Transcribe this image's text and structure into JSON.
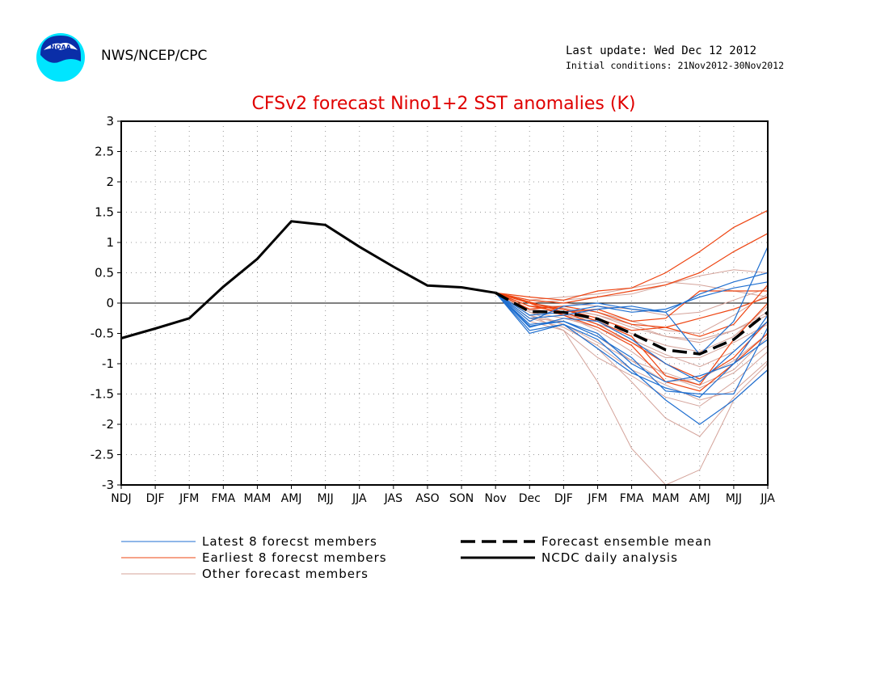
{
  "header": {
    "agency": "NWS/NCEP/CPC",
    "last_update": "Last update: Wed Dec 12 2012",
    "initial_conditions": "Initial conditions: 21Nov2012-30Nov2012",
    "logo_text": "NOAA"
  },
  "colors": {
    "title": "#e00000",
    "latest": "#1f6fd0",
    "earliest": "#ee4411",
    "other": "#d4a39a",
    "analysis": "#000000"
  },
  "chart_data": {
    "type": "line",
    "title": "CFSv2 forecast Nino1+2 SST anomalies (K)",
    "categories": [
      "NDJ",
      "DJF",
      "JFM",
      "FMA",
      "MAM",
      "AMJ",
      "MJJ",
      "JJA",
      "JAS",
      "ASO",
      "SON",
      "Nov",
      "Dec",
      "DJF",
      "JFM",
      "FMA",
      "MAM",
      "AMJ",
      "MJJ",
      "JJA"
    ],
    "ylim": [
      -3,
      3
    ],
    "yticks": [
      "3",
      "2.5",
      "2",
      "1.5",
      "1",
      "0.5",
      "0",
      "-0.5",
      "-1",
      "-1.5",
      "-2",
      "-2.5",
      "-3"
    ],
    "grid": true,
    "legend": [
      {
        "label": "Latest 8 forecst members",
        "style": "latest"
      },
      {
        "label": "Earliest 8 forecst members",
        "style": "earliest"
      },
      {
        "label": "Other forecast members",
        "style": "other"
      },
      {
        "label": "Forecast ensemble mean",
        "style": "mean"
      },
      {
        "label": "NCDC daily analysis",
        "style": "analysis"
      }
    ],
    "analysis": {
      "name": "NCDC daily analysis",
      "start_index": 0,
      "values": [
        -0.58,
        -0.42,
        -0.25,
        0.27,
        0.73,
        1.35,
        1.29,
        0.93,
        0.6,
        0.29,
        0.26,
        0.17
      ]
    },
    "ensemble_mean": {
      "name": "Forecast ensemble mean",
      "start_index": 11,
      "values": [
        0.17,
        -0.14,
        -0.15,
        -0.26,
        -0.5,
        -0.77,
        -0.84,
        -0.6,
        -0.15
      ]
    },
    "latest_members": [
      [
        0.17,
        -0.35,
        -0.3,
        -0.55,
        -0.9,
        -1.45,
        -1.5,
        -1.5,
        -0.4
      ],
      [
        0.17,
        -0.45,
        -0.35,
        -0.6,
        -1.1,
        -1.6,
        -2.0,
        -1.6,
        -1.1
      ],
      [
        0.17,
        -0.4,
        -0.25,
        -0.3,
        -0.6,
        -1.0,
        -1.3,
        -0.8,
        -0.3
      ],
      [
        0.17,
        -0.3,
        -0.05,
        0.0,
        -0.1,
        -0.15,
        0.15,
        0.35,
        0.5
      ],
      [
        0.17,
        -0.5,
        -0.35,
        -0.75,
        -1.15,
        -1.4,
        -1.55,
        -1.0,
        -0.2
      ],
      [
        0.17,
        -0.25,
        -0.2,
        -0.1,
        -0.05,
        -0.15,
        -0.85,
        -0.3,
        0.93
      ],
      [
        0.17,
        -0.38,
        -0.3,
        -0.5,
        -1.0,
        -1.3,
        -1.2,
        -1.0,
        -0.6
      ],
      [
        0.17,
        -0.2,
        -0.15,
        -0.05,
        -0.15,
        -0.1,
        0.1,
        0.25,
        0.35
      ]
    ],
    "earliest_members": [
      [
        0.17,
        0.1,
        0.05,
        0.2,
        0.25,
        0.5,
        0.85,
        1.25,
        1.53
      ],
      [
        0.17,
        0.05,
        0.0,
        0.1,
        0.2,
        0.3,
        0.5,
        0.85,
        1.15
      ],
      [
        0.17,
        0.0,
        -0.1,
        -0.25,
        -0.45,
        -0.4,
        -0.25,
        -0.1,
        0.1
      ],
      [
        0.17,
        0.02,
        -0.15,
        -0.35,
        -0.65,
        -1.0,
        -1.25,
        -0.9,
        -0.3
      ],
      [
        0.17,
        -0.05,
        -0.1,
        -0.3,
        -0.55,
        -1.2,
        -1.35,
        -0.6,
        0.0
      ],
      [
        0.17,
        -0.1,
        -0.05,
        -0.15,
        -0.35,
        -0.4,
        -0.55,
        -0.35,
        0.3
      ],
      [
        0.17,
        -0.05,
        -0.15,
        -0.1,
        -0.3,
        -0.25,
        0.2,
        0.2,
        0.2
      ],
      [
        0.17,
        0.0,
        -0.2,
        -0.4,
        -0.7,
        -1.3,
        -1.45,
        -1.0,
        -0.5
      ]
    ],
    "other_members": [
      [
        0.17,
        -0.2,
        -0.45,
        -1.3,
        -2.4,
        -3.0,
        -2.75,
        -1.6,
        -1.1
      ],
      [
        0.17,
        -0.15,
        -0.35,
        -0.75,
        -1.3,
        -1.9,
        -2.2,
        -1.55,
        -1.0
      ],
      [
        0.17,
        -0.1,
        -0.2,
        -0.45,
        -0.8,
        -1.2,
        -1.4,
        -1.15,
        -0.7
      ],
      [
        0.17,
        -0.05,
        -0.1,
        -0.2,
        -0.4,
        -0.55,
        -0.65,
        -0.45,
        -0.15
      ],
      [
        0.17,
        0.0,
        0.05,
        0.1,
        0.15,
        0.3,
        0.45,
        0.55,
        0.5
      ],
      [
        0.17,
        0.05,
        0.1,
        0.15,
        0.25,
        0.35,
        0.3,
        0.2,
        0.1
      ],
      [
        0.17,
        -0.25,
        -0.3,
        -0.55,
        -0.95,
        -1.3,
        -1.25,
        -0.95,
        -0.5
      ],
      [
        0.17,
        -0.3,
        -0.45,
        -0.9,
        -1.2,
        -1.55,
        -1.7,
        -1.3,
        -0.8
      ],
      [
        0.17,
        -0.1,
        -0.15,
        -0.3,
        -0.6,
        -0.85,
        -1.05,
        -0.8,
        -0.3
      ],
      [
        0.17,
        -0.05,
        -0.05,
        -0.15,
        -0.3,
        -0.45,
        -0.5,
        -0.2,
        0.15
      ],
      [
        0.17,
        0.05,
        0.0,
        -0.05,
        -0.1,
        -0.2,
        -0.15,
        0.05,
        0.25
      ],
      [
        0.17,
        -0.15,
        -0.25,
        -0.4,
        -0.65,
        -0.9,
        -0.9,
        -0.65,
        -0.35
      ],
      [
        0.17,
        -0.2,
        -0.35,
        -0.65,
        -0.95,
        -1.15,
        -1.35,
        -1.1,
        -0.55
      ],
      [
        0.17,
        -0.12,
        -0.18,
        -0.35,
        -0.5,
        -0.7,
        -0.8,
        -0.55,
        -0.05
      ],
      [
        0.17,
        0.0,
        -0.08,
        -0.2,
        -0.35,
        -0.55,
        -0.6,
        -0.45,
        -0.2
      ],
      [
        0.17,
        -0.25,
        -0.4,
        -0.7,
        -1.1,
        -1.35,
        -1.6,
        -1.45,
        -0.95
      ]
    ]
  }
}
